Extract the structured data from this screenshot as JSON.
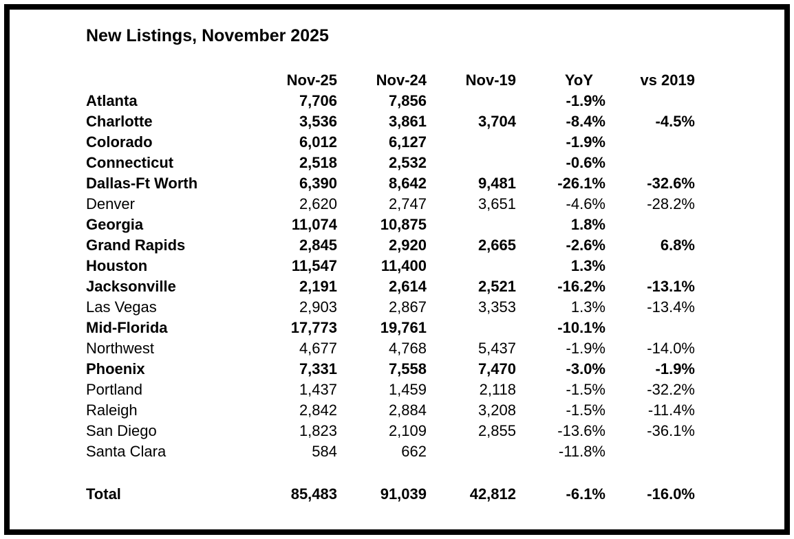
{
  "title": "New Listings, November 2025",
  "table": {
    "columns": [
      "",
      "Nov-25",
      "Nov-24",
      "Nov-19",
      "YoY",
      "vs 2019"
    ],
    "rows": [
      {
        "name": "Atlanta",
        "nov25": "7,706",
        "nov24": "7,856",
        "nov19": "",
        "yoy": "-1.9%",
        "vs2019": "",
        "bold": true
      },
      {
        "name": "Charlotte",
        "nov25": "3,536",
        "nov24": "3,861",
        "nov19": "3,704",
        "yoy": "-8.4%",
        "vs2019": "-4.5%",
        "bold": true
      },
      {
        "name": "Colorado",
        "nov25": "6,012",
        "nov24": "6,127",
        "nov19": "",
        "yoy": "-1.9%",
        "vs2019": "",
        "bold": true
      },
      {
        "name": "Connecticut",
        "nov25": "2,518",
        "nov24": "2,532",
        "nov19": "",
        "yoy": "-0.6%",
        "vs2019": "",
        "bold": true
      },
      {
        "name": "Dallas-Ft Worth",
        "nov25": "6,390",
        "nov24": "8,642",
        "nov19": "9,481",
        "yoy": "-26.1%",
        "vs2019": "-32.6%",
        "bold": true
      },
      {
        "name": "Denver",
        "nov25": "2,620",
        "nov24": "2,747",
        "nov19": "3,651",
        "yoy": "-4.6%",
        "vs2019": "-28.2%",
        "bold": false
      },
      {
        "name": "Georgia",
        "nov25": "11,074",
        "nov24": "10,875",
        "nov19": "",
        "yoy": "1.8%",
        "vs2019": "",
        "bold": true
      },
      {
        "name": "Grand Rapids",
        "nov25": "2,845",
        "nov24": "2,920",
        "nov19": "2,665",
        "yoy": "-2.6%",
        "vs2019": "6.8%",
        "bold": true
      },
      {
        "name": "Houston",
        "nov25": "11,547",
        "nov24": "11,400",
        "nov19": "",
        "yoy": "1.3%",
        "vs2019": "",
        "bold": true
      },
      {
        "name": "Jacksonville",
        "nov25": "2,191",
        "nov24": "2,614",
        "nov19": "2,521",
        "yoy": "-16.2%",
        "vs2019": "-13.1%",
        "bold": true
      },
      {
        "name": "Las Vegas",
        "nov25": "2,903",
        "nov24": "2,867",
        "nov19": "3,353",
        "yoy": "1.3%",
        "vs2019": "-13.4%",
        "bold": false
      },
      {
        "name": "Mid-Florida",
        "nov25": "17,773",
        "nov24": "19,761",
        "nov19": "",
        "yoy": "-10.1%",
        "vs2019": "",
        "bold": true
      },
      {
        "name": "Northwest",
        "nov25": "4,677",
        "nov24": "4,768",
        "nov19": "5,437",
        "yoy": "-1.9%",
        "vs2019": "-14.0%",
        "bold": false
      },
      {
        "name": "Phoenix",
        "nov25": "7,331",
        "nov24": "7,558",
        "nov19": "7,470",
        "yoy": "-3.0%",
        "vs2019": "-1.9%",
        "bold": true
      },
      {
        "name": "Portland",
        "nov25": "1,437",
        "nov24": "1,459",
        "nov19": "2,118",
        "yoy": "-1.5%",
        "vs2019": "-32.2%",
        "bold": false
      },
      {
        "name": "Raleigh",
        "nov25": "2,842",
        "nov24": "2,884",
        "nov19": "3,208",
        "yoy": "-1.5%",
        "vs2019": "-11.4%",
        "bold": false
      },
      {
        "name": "San Diego",
        "nov25": "1,823",
        "nov24": "2,109",
        "nov19": "2,855",
        "yoy": "-13.6%",
        "vs2019": "-36.1%",
        "bold": false
      },
      {
        "name": "Santa Clara",
        "nov25": "584",
        "nov24": "662",
        "nov19": "",
        "yoy": "-11.8%",
        "vs2019": "",
        "bold": false
      }
    ],
    "total": {
      "name": "Total",
      "nov25": "85,483",
      "nov24": "91,039",
      "nov19": "42,812",
      "yoy": "-6.1%",
      "vs2019": "-16.0%",
      "bold": true
    }
  },
  "colors": {
    "text": "#000000",
    "background": "#ffffff",
    "frame_border": "#000000"
  }
}
